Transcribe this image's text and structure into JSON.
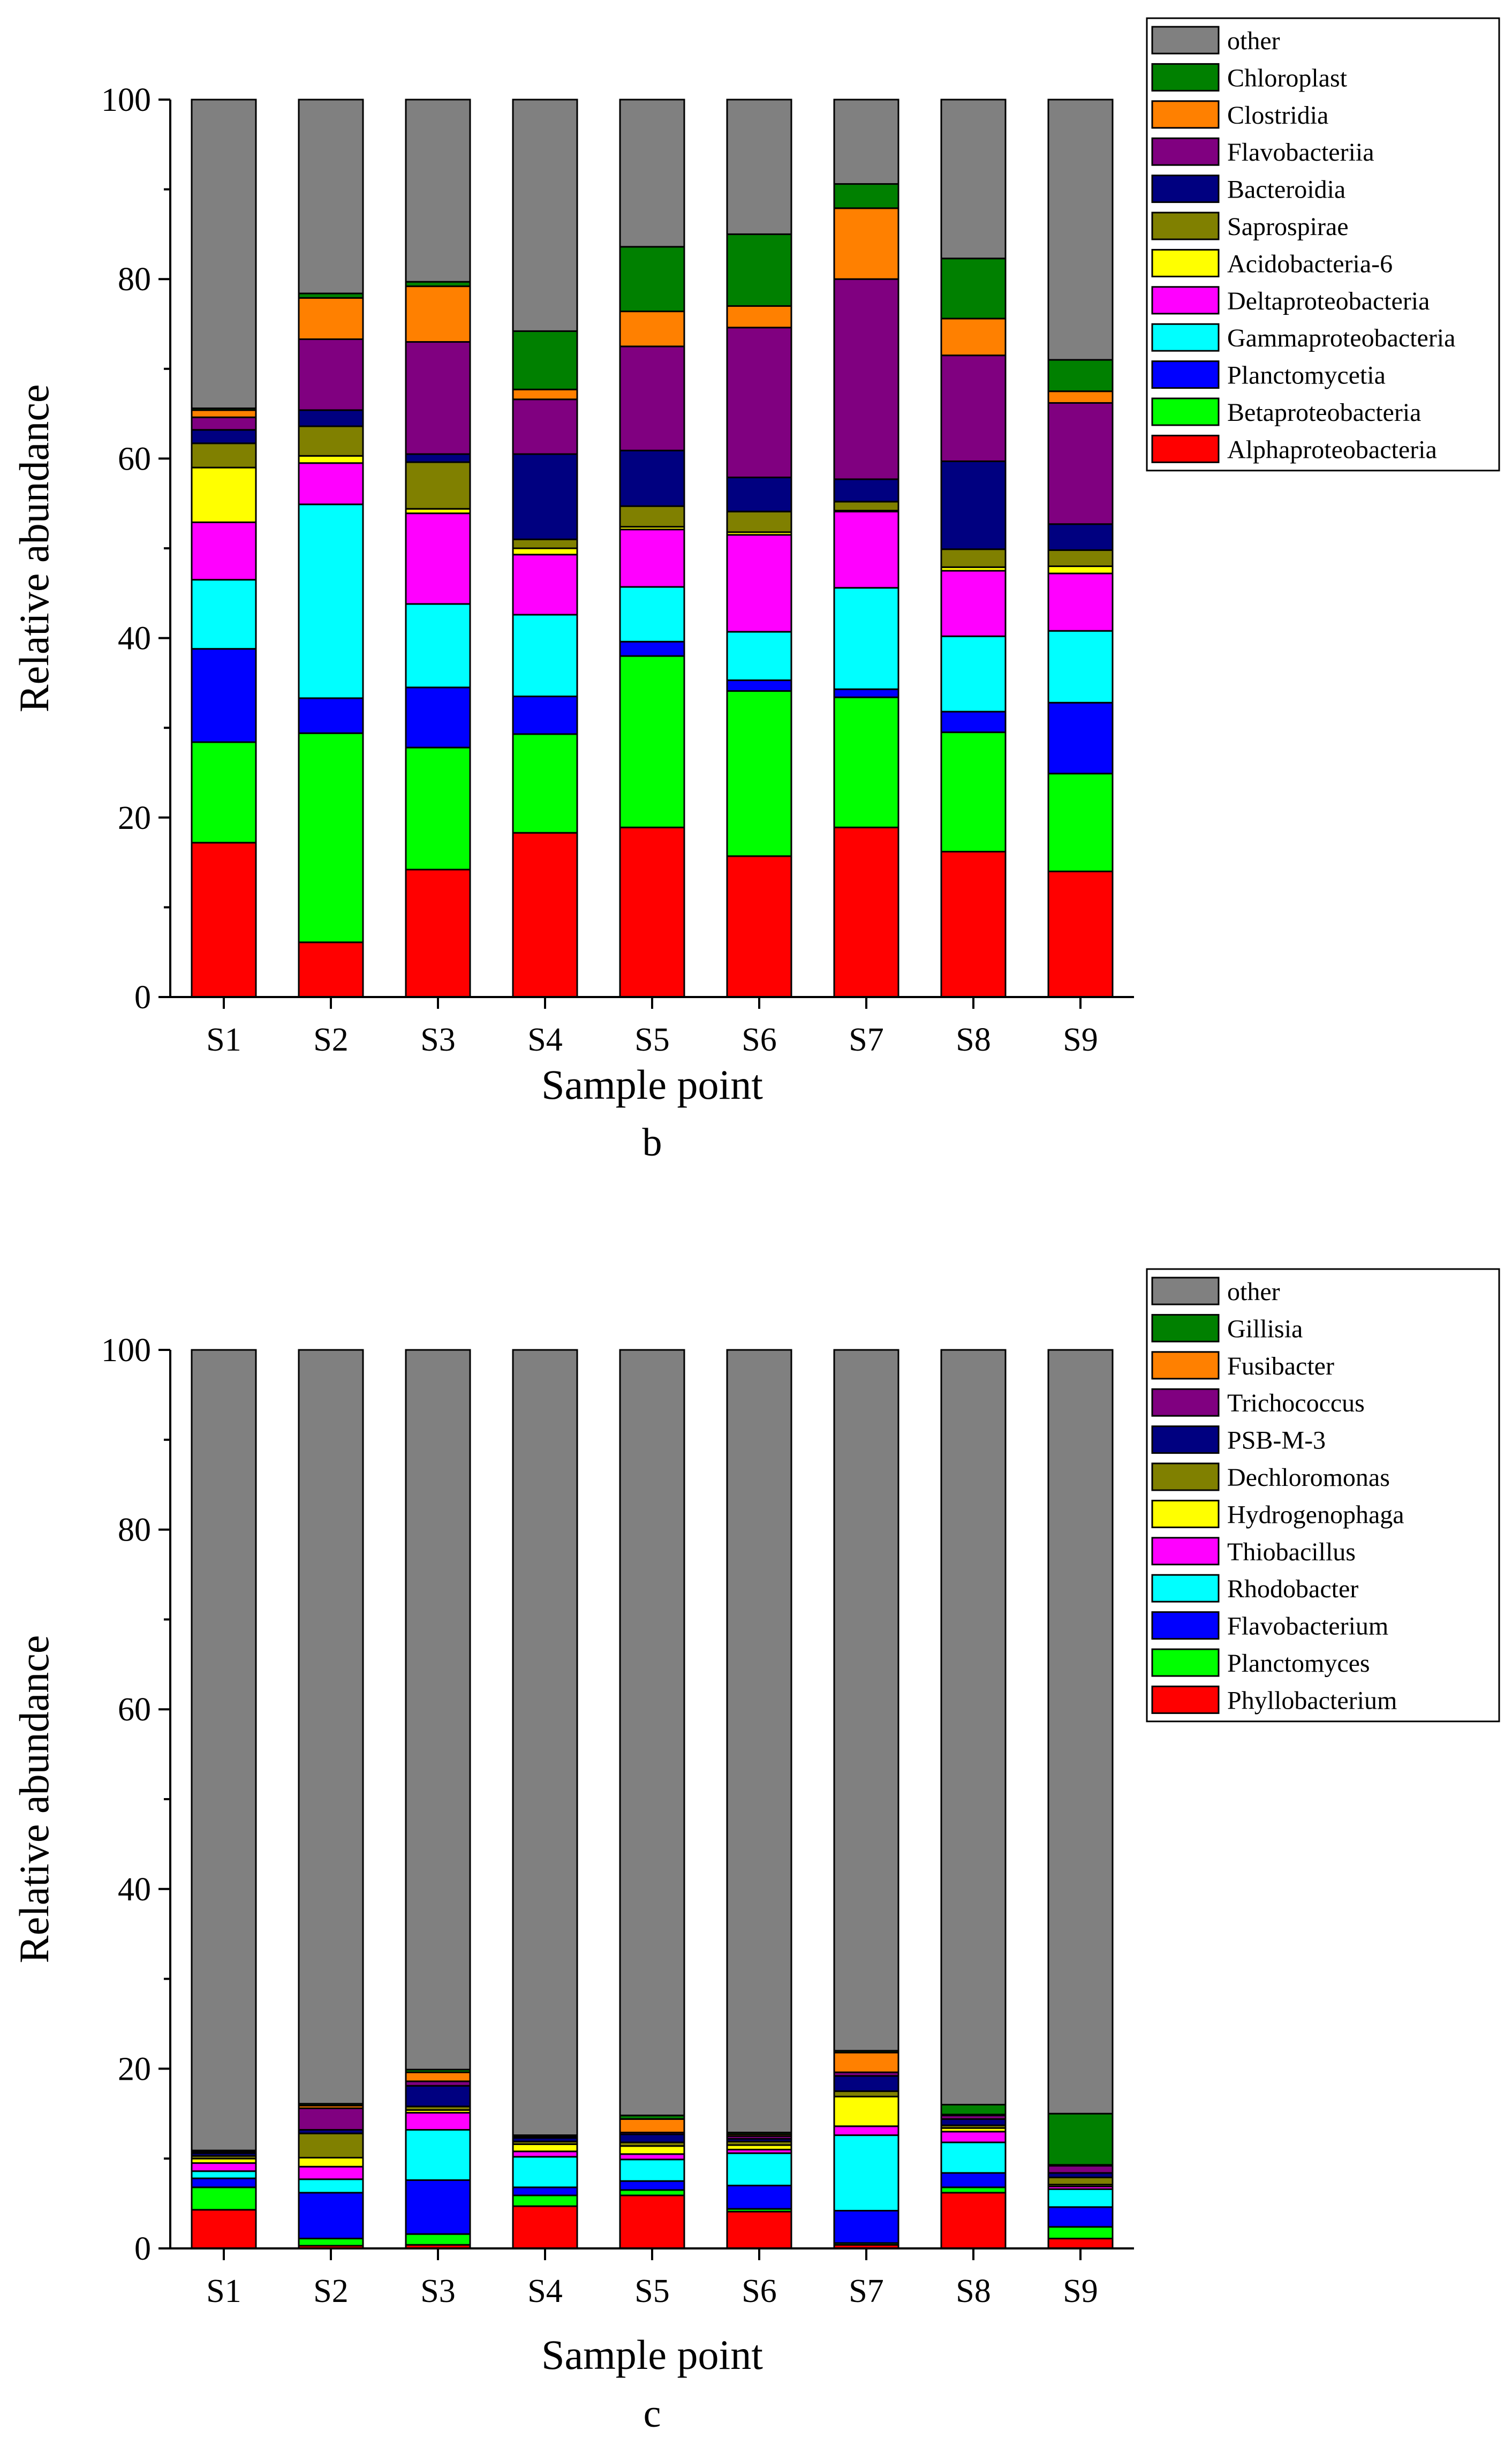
{
  "chart_data": [
    {
      "type": "bar",
      "stacked": true,
      "panel_label": "b",
      "xlabel": "Sample point",
      "ylabel": "Relative abundance",
      "ylim": [
        0,
        100
      ],
      "yticks": [
        0,
        20,
        40,
        60,
        80,
        100
      ],
      "grid": false,
      "legend_position": "top-right",
      "categories": [
        "S1",
        "S2",
        "S3",
        "S4",
        "S5",
        "S6",
        "S7",
        "S8",
        "S9"
      ],
      "series": [
        {
          "name": "Alphaproteobacteria",
          "color": "#ff0000",
          "values": [
            17.2,
            6.1,
            14.2,
            18.3,
            18.9,
            15.7,
            18.9,
            16.2,
            14.0
          ]
        },
        {
          "name": "Betaproteobacteria",
          "color": "#00ff00",
          "values": [
            11.2,
            23.3,
            13.6,
            11.0,
            19.1,
            18.4,
            14.5,
            13.3,
            10.9
          ]
        },
        {
          "name": "Planctomycetia",
          "color": "#0000ff",
          "values": [
            10.4,
            3.9,
            6.7,
            4.2,
            1.6,
            1.2,
            0.9,
            2.3,
            7.9
          ]
        },
        {
          "name": "Gammaproteobacteria",
          "color": "#00ffff",
          "values": [
            7.7,
            21.6,
            9.3,
            9.1,
            6.1,
            5.4,
            11.3,
            8.4,
            8.0
          ]
        },
        {
          "name": "Deltaproteobacteria",
          "color": "#ff00ff",
          "values": [
            6.4,
            4.6,
            10.1,
            6.7,
            6.4,
            10.8,
            8.5,
            7.3,
            6.4
          ]
        },
        {
          "name": "Acidobacteria-6",
          "color": "#ffff00",
          "values": [
            6.1,
            0.8,
            0.5,
            0.7,
            0.3,
            0.3,
            0.1,
            0.4,
            0.8
          ]
        },
        {
          "name": "Saprospirae",
          "color": "#808000",
          "values": [
            2.7,
            3.3,
            5.2,
            1.0,
            2.3,
            2.3,
            1.0,
            2.0,
            1.8
          ]
        },
        {
          "name": "Bacteroidia",
          "color": "#000080",
          "values": [
            1.5,
            1.8,
            0.9,
            9.5,
            6.2,
            3.8,
            2.5,
            9.8,
            2.9
          ]
        },
        {
          "name": "Flavobacteriia",
          "color": "#800080",
          "values": [
            1.4,
            7.9,
            12.5,
            6.1,
            11.6,
            16.7,
            22.3,
            11.8,
            13.5
          ]
        },
        {
          "name": "Clostridia",
          "color": "#ff8000",
          "values": [
            0.8,
            4.6,
            6.2,
            1.1,
            3.9,
            2.4,
            7.9,
            4.1,
            1.3
          ]
        },
        {
          "name": "Chloroplast",
          "color": "#008000",
          "values": [
            0.2,
            0.5,
            0.5,
            6.5,
            7.2,
            8.0,
            2.7,
            6.7,
            3.5
          ]
        },
        {
          "name": "other",
          "color": "#808080",
          "values": [
            34.4,
            21.6,
            20.3,
            25.8,
            16.4,
            15.0,
            9.4,
            17.7,
            29.0
          ]
        }
      ]
    },
    {
      "type": "bar",
      "stacked": true,
      "panel_label": "c",
      "xlabel": "Sample point",
      "ylabel": "Relative abundance",
      "ylim": [
        0,
        100
      ],
      "yticks": [
        0,
        20,
        40,
        60,
        80,
        100
      ],
      "grid": false,
      "legend_position": "top-right",
      "categories": [
        "S1",
        "S2",
        "S3",
        "S4",
        "S5",
        "S6",
        "S7",
        "S8",
        "S9"
      ],
      "series": [
        {
          "name": "Phyllobacterium",
          "color": "#ff0000",
          "values": [
            4.3,
            0.3,
            0.4,
            4.7,
            5.9,
            4.1,
            0.4,
            6.2,
            1.1
          ]
        },
        {
          "name": "Planctomyces",
          "color": "#00ff00",
          "values": [
            2.5,
            0.8,
            1.2,
            1.2,
            0.6,
            0.3,
            0.2,
            0.6,
            1.3
          ]
        },
        {
          "name": "Flavobacterium",
          "color": "#0000ff",
          "values": [
            1.0,
            5.1,
            6.0,
            0.9,
            1.0,
            2.6,
            3.6,
            1.6,
            2.2
          ]
        },
        {
          "name": "Rhodobacter",
          "color": "#00ffff",
          "values": [
            0.8,
            1.5,
            5.6,
            3.4,
            2.4,
            3.6,
            8.4,
            3.4,
            2.0
          ]
        },
        {
          "name": "Thiobacillus",
          "color": "#ff00ff",
          "values": [
            0.9,
            1.4,
            1.9,
            0.6,
            0.6,
            0.4,
            1.0,
            1.2,
            0.3
          ]
        },
        {
          "name": "Hydrogenophaga",
          "color": "#ffff00",
          "values": [
            0.5,
            1.0,
            0.3,
            0.8,
            0.9,
            0.5,
            3.3,
            0.4,
            0.2
          ]
        },
        {
          "name": "Dechloromonas",
          "color": "#808000",
          "values": [
            0.3,
            2.7,
            0.4,
            0.3,
            0.4,
            0.4,
            0.6,
            0.3,
            0.8
          ]
        },
        {
          "name": "PSB-M-3",
          "color": "#000080",
          "values": [
            0.3,
            0.4,
            2.3,
            0.4,
            0.9,
            0.3,
            1.7,
            0.7,
            0.5
          ]
        },
        {
          "name": "Trichococcus",
          "color": "#800080",
          "values": [
            0.1,
            2.4,
            0.5,
            0.1,
            0.2,
            0.3,
            0.4,
            0.4,
            0.8
          ]
        },
        {
          "name": "Fusibacter",
          "color": "#ff8000",
          "values": [
            0.1,
            0.3,
            1.0,
            0.1,
            1.5,
            0.2,
            2.2,
            0.1,
            0.1
          ]
        },
        {
          "name": "Gillisia",
          "color": "#008000",
          "values": [
            0.1,
            0.2,
            0.3,
            0.1,
            0.4,
            0.2,
            0.2,
            1.1,
            5.7
          ]
        },
        {
          "name": "other",
          "color": "#808080",
          "values": [
            89.1,
            83.9,
            80.1,
            87.4,
            85.2,
            87.1,
            78.0,
            84.0,
            85.0
          ]
        }
      ]
    }
  ]
}
